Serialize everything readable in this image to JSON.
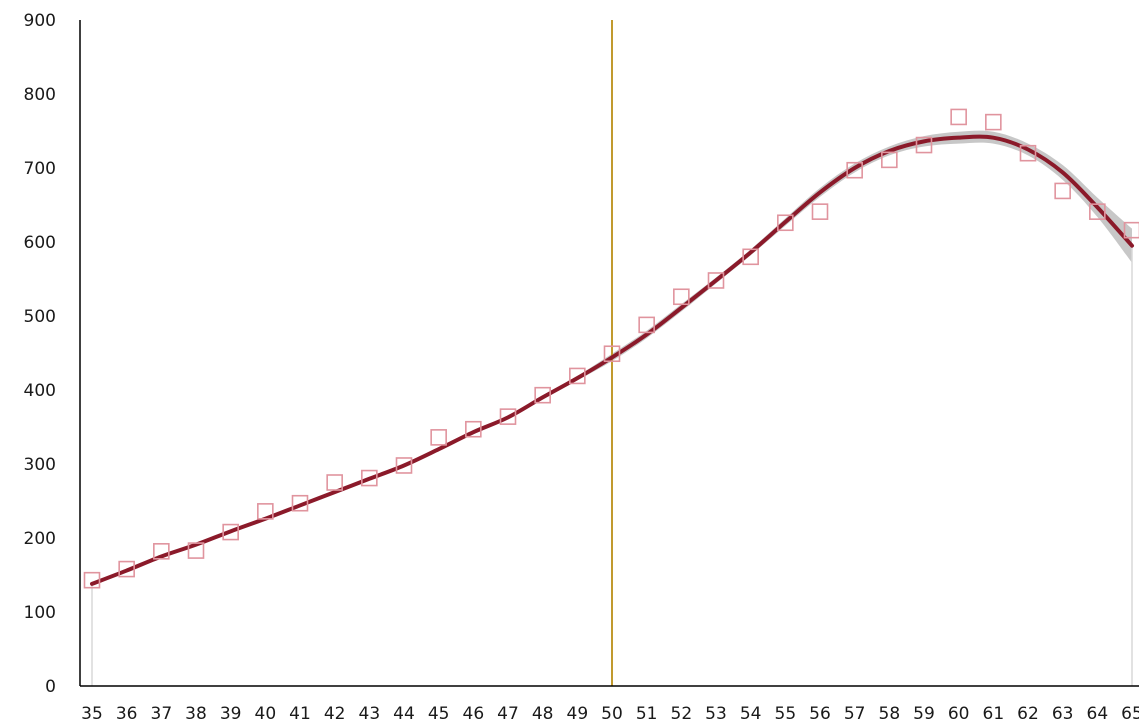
{
  "chart_data": {
    "type": "line",
    "title": "",
    "xlabel": "",
    "ylabel": "",
    "x": [
      35,
      36,
      37,
      38,
      39,
      40,
      41,
      42,
      43,
      44,
      45,
      46,
      47,
      48,
      49,
      50,
      51,
      52,
      53,
      54,
      55,
      56,
      57,
      58,
      59,
      60,
      61,
      62,
      63,
      64,
      65
    ],
    "xlim": [
      35,
      65
    ],
    "ylim": [
      0,
      900
    ],
    "yticks": [
      0,
      100,
      200,
      300,
      400,
      500,
      600,
      700,
      800,
      900
    ],
    "reference_line_x": 50,
    "grid": false,
    "legend": "none",
    "series": [
      {
        "kind": "observed",
        "marker": "open-square",
        "values": [
          143,
          158,
          182,
          183,
          208,
          236,
          247,
          275,
          281,
          298,
          336,
          347,
          364,
          393,
          419,
          449,
          488,
          526,
          548,
          580,
          626,
          641,
          697,
          711,
          731,
          769,
          762,
          720,
          669,
          641,
          616
        ]
      },
      {
        "kind": "fitted",
        "values": [
          138,
          156,
          175,
          191,
          209,
          226,
          244,
          262,
          280,
          298,
          320,
          343,
          363,
          390,
          416,
          444,
          475,
          511,
          548,
          586,
          627,
          667,
          700,
          723,
          736,
          741,
          741,
          725,
          694,
          647,
          595
        ]
      },
      {
        "kind": "confidence-band",
        "lower": [
          136,
          154,
          173,
          189,
          207,
          224,
          242,
          260,
          278,
          296,
          318,
          340,
          361,
          388,
          413,
          439,
          470,
          506,
          544,
          582,
          622,
          661,
          694,
          717,
          729,
          733,
          733,
          717,
          684,
          634,
          572
        ],
        "upper": [
          140,
          158,
          177,
          193,
          211,
          228,
          246,
          264,
          282,
          300,
          322,
          346,
          365,
          392,
          419,
          449,
          480,
          516,
          552,
          590,
          632,
          673,
          706,
          729,
          743,
          749,
          749,
          733,
          704,
          660,
          618
        ]
      }
    ],
    "colors": {
      "fitted_line": "#8b1a2a",
      "markers": "#e0949e",
      "band": "#bdbdbd",
      "reference_line": "#c19a2e",
      "axis": "#000000",
      "edge_lines": "#d8d8d8"
    }
  }
}
